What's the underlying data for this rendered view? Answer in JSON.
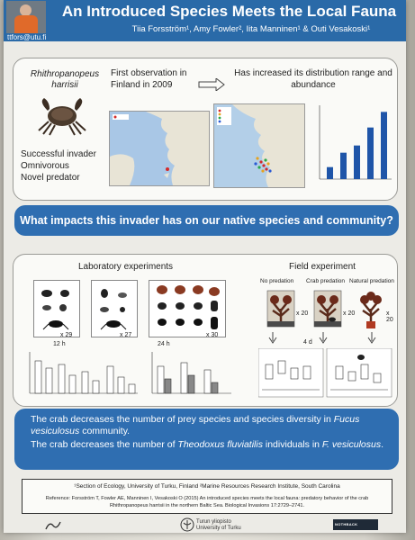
{
  "header": {
    "title": "An Introduced Species Meets the Local Fauna",
    "authors": "Tiia Forsström¹, Amy Fowler², Iita Manninen¹ & Outi Vesakoski¹",
    "email": "ttfors@utu.fi"
  },
  "intro": {
    "species_name": "Rhithropanopeus harrisii",
    "traits": [
      "Successful invader",
      "Omnivorous",
      "Novel predator"
    ],
    "first_observation": "First observation in Finland in 2009",
    "distribution": "Has increased its distribution range and abundance",
    "bar_values": [
      1,
      2.2,
      2.8,
      4.3,
      5.6
    ]
  },
  "question": "What impacts this invader has on our native species and community?",
  "experiments": {
    "laboratory_title": "Laboratory experiments",
    "field_title": "Field experiment",
    "lab_counts": [
      "x 29",
      "x 27",
      "x 30"
    ],
    "lab_times": [
      "12 h",
      "24 h"
    ],
    "field_conditions": [
      "No predation",
      "Crab predation",
      "Natural predation"
    ],
    "field_counts": [
      "x 20",
      "x 20",
      "x 20"
    ],
    "field_time": "4 d"
  },
  "conclusions": {
    "line1_a": "The crab decreases the number of prey species and species diversity in ",
    "line1_species": "Fucus vesiculosus",
    "line1_b": " community.",
    "line2_a": "The crab decreases the number of ",
    "line2_species": "Theodoxus fluviatilis",
    "line2_b": " individuals in ",
    "line2_species2": "F. vesiculosus",
    "line2_c": "."
  },
  "references": {
    "affiliations": "¹Section of Ecology, University of Turku, Finland  ²Marine Resources Research Institute, South Carolina",
    "citation": "Reference: Forsström T, Fowler AE, Manninen I, Vesakoski O (2015) An introduced species meets the local fauna: predatory behavior of the crab Rhithropanopeus harrisii in the northern Baltic Sea. Biological Invasions 17:2729–2741."
  },
  "footer": {
    "university": "Turun yliopisto\nUniversity of Turku",
    "right_logo": "NOTHBACK"
  },
  "colors": {
    "header_blue": "#2a6aa8",
    "banner_blue": "#2f6eb1",
    "bar_blue": "#1f55a8"
  }
}
